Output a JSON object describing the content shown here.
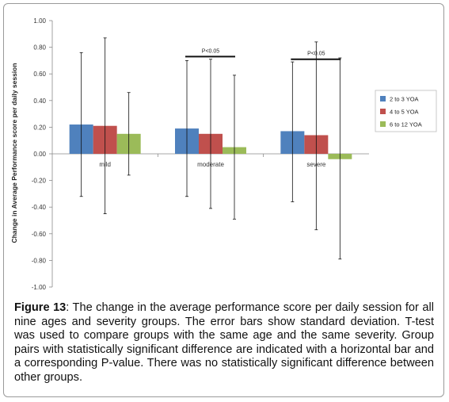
{
  "chart_data": {
    "type": "bar",
    "categories": [
      "mild",
      "moderate",
      "severe"
    ],
    "ylabel": "Change in Average Performance score per daily session",
    "ylim": [
      -1.0,
      1.0
    ],
    "ytick_step": 0.2,
    "yticks": [
      "1.00",
      "0.80",
      "0.60",
      "0.40",
      "0.20",
      "0.00",
      "-0.20",
      "-0.40",
      "-0.60",
      "-0.80",
      "-1.00"
    ],
    "legend_position": "right",
    "series": [
      {
        "name": "2 to 3 YOA",
        "color": "#4f81bd",
        "values": [
          0.22,
          0.19,
          0.17
        ],
        "err_upper": [
          0.76,
          0.7,
          0.69
        ],
        "err_lower": [
          -0.32,
          -0.32,
          -0.36
        ]
      },
      {
        "name": "4 to 5 YOA",
        "color": "#c0504d",
        "values": [
          0.21,
          0.15,
          0.14
        ],
        "err_upper": [
          0.87,
          0.71,
          0.84
        ],
        "err_lower": [
          -0.45,
          -0.41,
          -0.57
        ]
      },
      {
        "name": "6 to 12 YOA",
        "color": "#9bbb59",
        "values": [
          0.15,
          0.05,
          -0.04
        ],
        "err_upper": [
          0.46,
          0.59,
          0.72
        ],
        "err_lower": [
          -0.16,
          -0.49,
          -0.79
        ]
      }
    ],
    "annotations": [
      {
        "label": "P<0.05",
        "category": "moderate",
        "y": 0.73
      },
      {
        "label": "P<0.05",
        "category": "severe",
        "y": 0.71
      }
    ]
  },
  "caption": {
    "label": "Figure 13",
    "text": ": The change in the average performance score per daily session for all nine ages and severity groups. The error bars show standard deviation. T-test was used to compare groups with the same age and the same severity. Group pairs with statistically significant difference are indicated with a horizontal bar and a corresponding P-value. There was no statistically significant difference between other groups."
  }
}
